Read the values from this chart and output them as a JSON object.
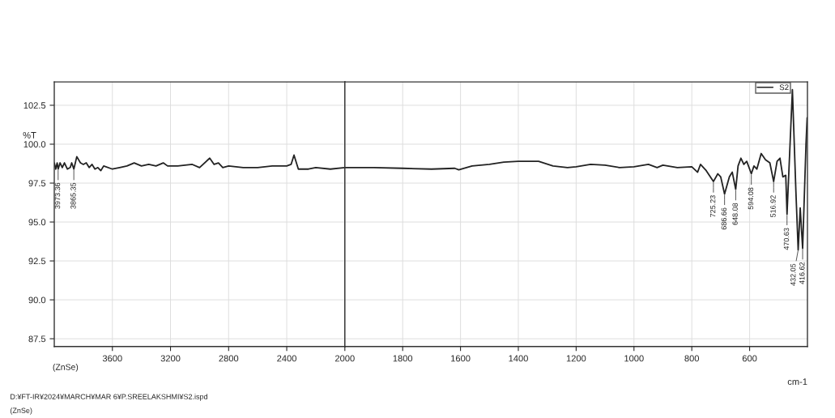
{
  "chart_data": [
    {
      "type": "line",
      "ylabel": "%T",
      "xlim": [
        4000,
        2000
      ],
      "ylim": [
        87,
        104
      ],
      "xticks": [
        3600,
        3200,
        2800,
        2400
      ],
      "yticks": [
        87.5,
        {
          "value": 90,
          "label": "90.0"
        },
        92.5,
        {
          "value": 95,
          "label": "95.0"
        },
        97.5,
        {
          "value": 100,
          "label": "100.0"
        },
        102.5
      ],
      "grid": true,
      "line_style": "solid",
      "x": [
        4000,
        3990,
        3980,
        3973.36,
        3960,
        3945,
        3930,
        3910,
        3890,
        3880,
        3865.35,
        3845,
        3820,
        3800,
        3780,
        3760,
        3740,
        3720,
        3700,
        3680,
        3660,
        3600,
        3550,
        3500,
        3450,
        3400,
        3350,
        3300,
        3250,
        3220,
        3150,
        3050,
        3000,
        2930,
        2900,
        2870,
        2840,
        2800,
        2700,
        2600,
        2500,
        2400,
        2370,
        2350,
        2320,
        2250,
        2200,
        2100,
        2000
      ],
      "series": [
        {
          "color": "#222222",
          "values": [
            98.8,
            98.4,
            98.8,
            98.4,
            98.8,
            98.5,
            98.8,
            98.4,
            98.5,
            98.8,
            98.4,
            99.2,
            98.8,
            98.7,
            98.8,
            98.5,
            98.7,
            98.4,
            98.5,
            98.3,
            98.6,
            98.4,
            98.5,
            98.6,
            98.8,
            98.6,
            98.7,
            98.6,
            98.8,
            98.6,
            98.6,
            98.7,
            98.5,
            99.1,
            98.7,
            98.8,
            98.5,
            98.6,
            98.5,
            98.5,
            98.6,
            98.6,
            98.7,
            99.3,
            98.4,
            98.4,
            98.5,
            98.4,
            98.5
          ]
        }
      ],
      "annotations": [
        {
          "text": "3973.36",
          "x": 3973.36,
          "y": 98.4
        },
        {
          "text": "3865.35",
          "x": 3865.35,
          "y": 98.4
        },
        "(ZnSe)",
        "D:¥FT-IR¥2024¥MARCH¥MAR 6¥P.SREELAKSHMI¥S2.ispd",
        "(ZnSe)"
      ]
    },
    {
      "type": "line",
      "xlabel": "cm-1",
      "xlim": [
        2000,
        400
      ],
      "ylim": [
        87,
        104
      ],
      "xticks": [
        2000,
        1800,
        1600,
        1400,
        1200,
        1000,
        800,
        600
      ],
      "yticks": [
        {
          "value": 87.5,
          "label": null
        },
        {
          "value": 90,
          "label": null
        },
        {
          "value": 92.5,
          "label": null
        },
        {
          "value": 95,
          "label": null
        },
        {
          "value": 97.5,
          "label": null
        },
        {
          "value": 100,
          "label": null
        },
        {
          "value": 102.5,
          "label": null
        }
      ],
      "grid": true,
      "line_style": "solid",
      "legend": "top right",
      "tick_labels": "x",
      "x": [
        2000,
        1900,
        1800,
        1700,
        1620,
        1606,
        1560,
        1500,
        1450,
        1400,
        1330,
        1280,
        1230,
        1200,
        1150,
        1100,
        1050,
        1000,
        950,
        920,
        900,
        850,
        800,
        780,
        770,
        750,
        725.23,
        710,
        700,
        686.66,
        670,
        660,
        648.08,
        640,
        630,
        620,
        610,
        600,
        594.08,
        585,
        575,
        560,
        545,
        530,
        516.92,
        505,
        495,
        485,
        475,
        470.63,
        452,
        440,
        432.05,
        425,
        416.62,
        405,
        401
      ],
      "series": [
        {
          "name": "S2",
          "color": "#222222",
          "values": [
            98.5,
            98.5,
            98.45,
            98.4,
            98.45,
            98.35,
            98.6,
            98.7,
            98.85,
            98.9,
            98.9,
            98.6,
            98.5,
            98.55,
            98.7,
            98.65,
            98.5,
            98.55,
            98.7,
            98.5,
            98.65,
            98.5,
            98.55,
            98.2,
            98.7,
            98.3,
            97.6,
            98.1,
            97.9,
            96.8,
            97.9,
            98.2,
            97.1,
            98.6,
            99.1,
            98.7,
            98.9,
            98.4,
            98.1,
            98.6,
            98.4,
            99.4,
            99.0,
            98.8,
            97.6,
            98.9,
            99.1,
            97.9,
            98.0,
            95.5,
            103.5,
            97.0,
            93.2,
            95.9,
            93.3,
            100.0,
            101.7
          ]
        }
      ],
      "annotations": [
        {
          "text": "725.23",
          "x": 725.23,
          "y": 97.6
        },
        {
          "text": "686.66",
          "x": 686.66,
          "y": 96.8
        },
        {
          "text": "648.08",
          "x": 648.08,
          "y": 97.1
        },
        {
          "text": "594.08",
          "x": 594.08,
          "y": 98.1
        },
        {
          "text": "516.92",
          "x": 516.92,
          "y": 97.6
        },
        {
          "text": "470.63",
          "x": 470.63,
          "y": 95.5
        },
        {
          "text": "432.05",
          "x": 432.05,
          "y": 93.2
        },
        {
          "text": "416.62",
          "x": 416.62,
          "y": 93.3
        }
      ]
    }
  ]
}
